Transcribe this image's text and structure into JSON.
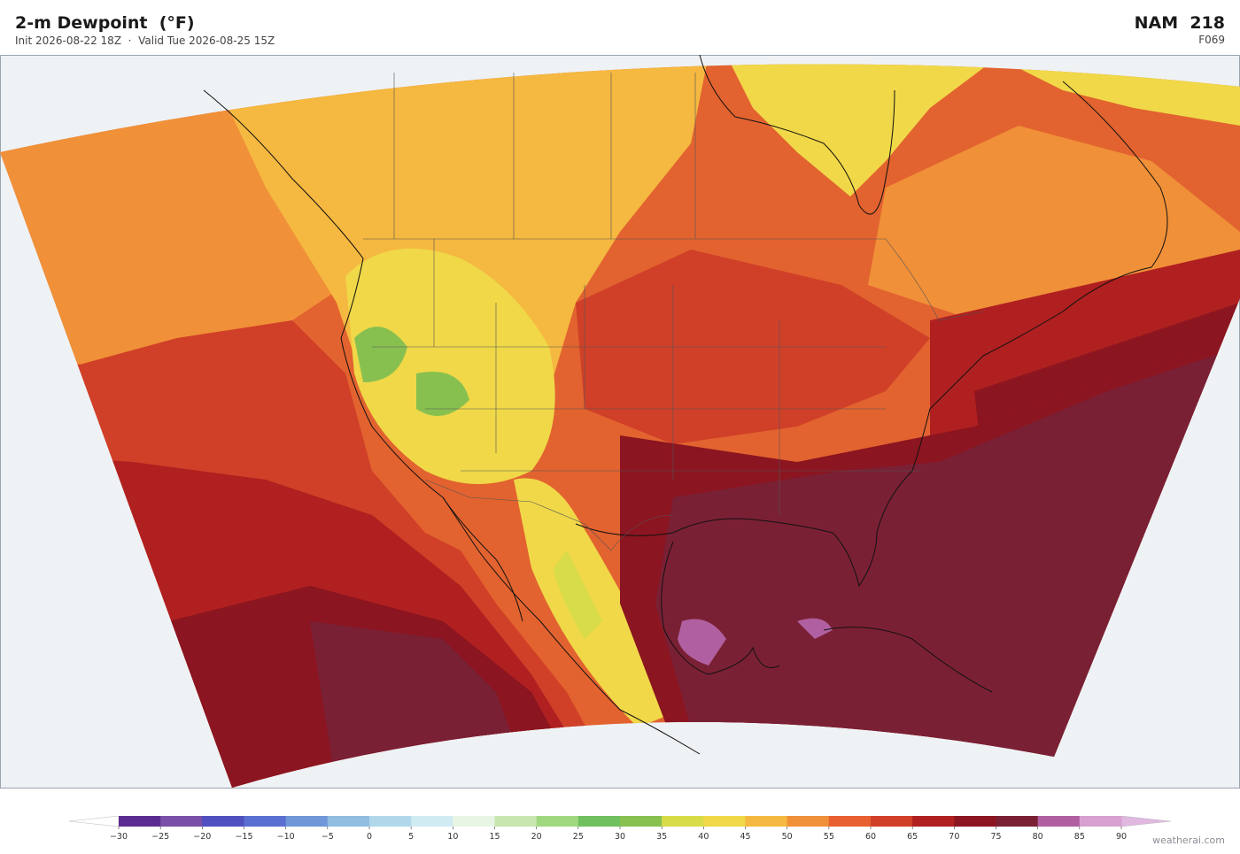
{
  "header": {
    "title": "2-m Dewpoint  (°F)",
    "subtitle": "Init 2026-08-22 18Z  ·  Valid Tue 2026-08-25 15Z",
    "model": "NAM  218",
    "forecast_hour": "F069"
  },
  "colorbar": {
    "ticks": [
      {
        "value": -30,
        "label": "−30"
      },
      {
        "value": -25,
        "label": "−25"
      },
      {
        "value": -20,
        "label": "−20"
      },
      {
        "value": -15,
        "label": "−15"
      },
      {
        "value": -10,
        "label": "−10"
      },
      {
        "value": -5,
        "label": "−5"
      },
      0,
      5,
      10,
      15,
      20,
      25,
      30,
      35,
      40,
      45,
      50,
      55,
      60,
      65,
      70,
      75,
      80,
      85,
      90
    ],
    "colors": [
      "#5c2d91",
      "#7a4fa8",
      "#5050c0",
      "#5a6fd0",
      "#7098d8",
      "#90bde0",
      "#b0d8ea",
      "#d0ebf2",
      "#e8f5e4",
      "#c8e6b0",
      "#a0d880",
      "#70c060",
      "#88c050",
      "#d8dc48",
      "#f0d848",
      "#f5b840",
      "#f09038",
      "#e8602f",
      "#d04028",
      "#b02020",
      "#8b1520",
      "#7a2035",
      "#b060a0",
      "#d8a0d0"
    ],
    "under_color": "#ffffff",
    "over_color": "#e0b8e0"
  },
  "footer": {
    "credit": "weatherai.com"
  }
}
